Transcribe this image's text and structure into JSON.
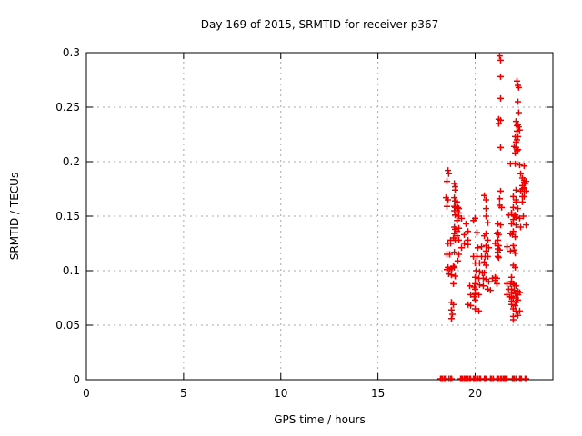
{
  "chart_data": {
    "type": "scatter",
    "title": "Day 169 of 2015, SRMTID for receiver p367",
    "xlabel": "GPS time / hours",
    "ylabel": "SRMTID / TECUs",
    "xlim": [
      0,
      24
    ],
    "ylim": [
      0,
      0.3
    ],
    "xticks": [
      {
        "v": 0,
        "label": "0"
      },
      {
        "v": 5,
        "label": "5"
      },
      {
        "v": 10,
        "label": "10"
      },
      {
        "v": 15,
        "label": "15"
      },
      {
        "v": 20,
        "label": "20"
      }
    ],
    "yticks": [
      {
        "v": 0,
        "label": "0"
      },
      {
        "v": 0.05,
        "label": "0.05"
      },
      {
        "v": 0.1,
        "label": "0.1"
      },
      {
        "v": 0.15,
        "label": "0.15"
      },
      {
        "v": 0.2,
        "label": "0.2"
      },
      {
        "v": 0.25,
        "label": "0.25"
      },
      {
        "v": 0.3,
        "label": "0.3"
      }
    ],
    "grid": true,
    "legend_position": "none",
    "colors": {
      "marker": "#ee0000",
      "grid": "#a8a8a8",
      "axis": "#000000"
    },
    "marker": {
      "shape": "plus",
      "size": 7,
      "stroke_width": 1.5
    },
    "series": [
      {
        "name": "SRMTID",
        "points": [
          [
            18.5,
            0.167
          ],
          [
            18.55,
            0.182
          ],
          [
            18.55,
            0.159
          ],
          [
            18.55,
            0.115
          ],
          [
            18.55,
            0.101
          ],
          [
            18.6,
            0.192
          ],
          [
            18.6,
            0.165
          ],
          [
            18.6,
            0.125
          ],
          [
            18.6,
            0.103
          ],
          [
            18.64,
            0.189
          ],
          [
            18.64,
            0.097
          ],
          [
            18.69,
            0.115
          ],
          [
            18.69,
            0.101
          ],
          [
            18.74,
            0.128
          ],
          [
            18.74,
            0.125
          ],
          [
            18.78,
            0.102
          ],
          [
            18.78,
            0.096
          ],
          [
            18.78,
            0.071
          ],
          [
            18.78,
            0.064
          ],
          [
            18.78,
            0.056
          ],
          [
            18.83,
            0.06
          ],
          [
            18.88,
            0.13
          ],
          [
            18.88,
            0.104
          ],
          [
            18.88,
            0.088
          ],
          [
            18.88,
            0.069
          ],
          [
            18.93,
            0.18
          ],
          [
            18.93,
            0.167
          ],
          [
            18.93,
            0.159
          ],
          [
            18.93,
            0.155
          ],
          [
            18.93,
            0.14
          ],
          [
            18.93,
            0.134
          ],
          [
            18.93,
            0.117
          ],
          [
            18.93,
            0.103
          ],
          [
            18.97,
            0.177
          ],
          [
            18.97,
            0.174
          ],
          [
            18.97,
            0.164
          ],
          [
            18.97,
            0.158
          ],
          [
            18.97,
            0.151
          ],
          [
            18.97,
            0.138
          ],
          [
            18.97,
            0.128
          ],
          [
            18.97,
            0.095
          ],
          [
            19.07,
            0.163
          ],
          [
            19.07,
            0.155
          ],
          [
            19.07,
            0.146
          ],
          [
            19.07,
            0.136
          ],
          [
            19.07,
            0.132
          ],
          [
            19.11,
            0.158
          ],
          [
            19.11,
            0.109
          ],
          [
            19.16,
            0.157
          ],
          [
            19.16,
            0.153
          ],
          [
            19.16,
            0.15
          ],
          [
            19.16,
            0.139
          ],
          [
            19.16,
            0.128
          ],
          [
            19.16,
            0.115
          ],
          [
            19.3,
            0.148
          ],
          [
            19.3,
            0.121
          ],
          [
            19.44,
            0.133
          ],
          [
            19.44,
            0.125
          ],
          [
            19.53,
            0.143
          ],
          [
            19.63,
            0.136
          ],
          [
            19.63,
            0.128
          ],
          [
            19.63,
            0.124
          ],
          [
            19.63,
            0.069
          ],
          [
            19.72,
            0.086
          ],
          [
            19.77,
            0.078
          ],
          [
            19.77,
            0.068
          ],
          [
            19.91,
            0.146
          ],
          [
            19.91,
            0.113
          ],
          [
            19.95,
            0.085
          ],
          [
            19.95,
            0.076
          ],
          [
            20.0,
            0.148
          ],
          [
            20.0,
            0.107
          ],
          [
            20.0,
            0.094
          ],
          [
            20.0,
            0.088
          ],
          [
            20.0,
            0.083
          ],
          [
            20.0,
            0.079
          ],
          [
            20.0,
            0.073
          ],
          [
            20.0,
            0.065
          ],
          [
            20.05,
            0.1
          ],
          [
            20.09,
            0.135
          ],
          [
            20.09,
            0.113
          ],
          [
            20.14,
            0.121
          ],
          [
            20.19,
            0.093
          ],
          [
            20.19,
            0.078
          ],
          [
            20.19,
            0.063
          ],
          [
            20.23,
            0.107
          ],
          [
            20.23,
            0.099
          ],
          [
            20.23,
            0.087
          ],
          [
            20.33,
            0.122
          ],
          [
            20.33,
            0.113
          ],
          [
            20.37,
            0.098
          ],
          [
            20.42,
            0.093
          ],
          [
            20.42,
            0.086
          ],
          [
            20.47,
            0.169
          ],
          [
            20.47,
            0.132
          ],
          [
            20.47,
            0.108
          ],
          [
            20.47,
            0.098
          ],
          [
            20.51,
            0.113
          ],
          [
            20.56,
            0.165
          ],
          [
            20.56,
            0.157
          ],
          [
            20.56,
            0.15
          ],
          [
            20.56,
            0.134
          ],
          [
            20.56,
            0.123
          ],
          [
            20.56,
            0.118
          ],
          [
            20.56,
            0.105
          ],
          [
            20.56,
            0.092
          ],
          [
            20.65,
            0.144
          ],
          [
            20.65,
            0.128
          ],
          [
            20.65,
            0.113
          ],
          [
            20.65,
            0.083
          ],
          [
            20.7,
            0.121
          ],
          [
            20.7,
            0.09
          ],
          [
            20.79,
            0.082
          ],
          [
            20.89,
            0.093
          ],
          [
            21.03,
            0.125
          ],
          [
            21.03,
            0.094
          ],
          [
            21.03,
            0.091
          ],
          [
            21.12,
            0.134
          ],
          [
            21.12,
            0.093
          ],
          [
            21.12,
            0.088
          ],
          [
            21.17,
            0.143
          ],
          [
            21.17,
            0.135
          ],
          [
            21.17,
            0.128
          ],
          [
            21.17,
            0.12
          ],
          [
            21.17,
            0.117
          ],
          [
            21.17,
            0.113
          ],
          [
            21.21,
            0.239
          ],
          [
            21.21,
            0.235
          ],
          [
            21.21,
            0.133
          ],
          [
            21.21,
            0.123
          ],
          [
            21.21,
            0.112
          ],
          [
            21.26,
            0.297
          ],
          [
            21.26,
            0.166
          ],
          [
            21.26,
            0.16
          ],
          [
            21.26,
            0.119
          ],
          [
            21.31,
            0.293
          ],
          [
            21.31,
            0.278
          ],
          [
            21.31,
            0.258
          ],
          [
            21.31,
            0.238
          ],
          [
            21.31,
            0.213
          ],
          [
            21.31,
            0.173
          ],
          [
            21.31,
            0.142
          ],
          [
            21.36,
            0.158
          ],
          [
            21.64,
            0.122
          ],
          [
            21.64,
            0.088
          ],
          [
            21.64,
            0.078
          ],
          [
            21.73,
            0.151
          ],
          [
            21.73,
            0.083
          ],
          [
            21.78,
            0.076
          ],
          [
            21.82,
            0.198
          ],
          [
            21.82,
            0.134
          ],
          [
            21.82,
            0.118
          ],
          [
            21.82,
            0.088
          ],
          [
            21.87,
            0.153
          ],
          [
            21.87,
            0.143
          ],
          [
            21.87,
            0.094
          ],
          [
            21.87,
            0.09
          ],
          [
            21.87,
            0.083
          ],
          [
            21.87,
            0.08
          ],
          [
            21.87,
            0.076
          ],
          [
            21.87,
            0.072
          ],
          [
            21.87,
            0.069
          ],
          [
            21.92,
            0.133
          ],
          [
            21.96,
            0.168
          ],
          [
            21.96,
            0.158
          ],
          [
            21.96,
            0.147
          ],
          [
            21.96,
            0.136
          ],
          [
            21.96,
            0.123
          ],
          [
            21.96,
            0.105
          ],
          [
            21.96,
            0.088
          ],
          [
            21.96,
            0.075
          ],
          [
            21.96,
            0.065
          ],
          [
            21.96,
            0.058
          ],
          [
            21.96,
            0.055
          ],
          [
            22.01,
            0.214
          ],
          [
            22.01,
            0.15
          ],
          [
            22.01,
            0.119
          ],
          [
            22.01,
            0.087
          ],
          [
            22.01,
            0.082
          ],
          [
            22.06,
            0.223
          ],
          [
            22.06,
            0.208
          ],
          [
            22.06,
            0.198
          ],
          [
            22.06,
            0.151
          ],
          [
            22.06,
            0.131
          ],
          [
            22.06,
            0.116
          ],
          [
            22.06,
            0.103
          ],
          [
            22.06,
            0.079
          ],
          [
            22.06,
            0.068
          ],
          [
            22.1,
            0.237
          ],
          [
            22.1,
            0.218
          ],
          [
            22.1,
            0.213
          ],
          [
            22.1,
            0.174
          ],
          [
            22.1,
            0.165
          ],
          [
            22.1,
            0.163
          ],
          [
            22.1,
            0.149
          ],
          [
            22.1,
            0.142
          ],
          [
            22.1,
            0.086
          ],
          [
            22.1,
            0.075
          ],
          [
            22.1,
            0.071
          ],
          [
            22.1,
            0.063
          ],
          [
            22.15,
            0.274
          ],
          [
            22.15,
            0.233
          ],
          [
            22.15,
            0.228
          ],
          [
            22.15,
            0.22
          ],
          [
            22.15,
            0.21
          ],
          [
            22.2,
            0.27
          ],
          [
            22.2,
            0.255
          ],
          [
            22.2,
            0.234
          ],
          [
            22.2,
            0.223
          ],
          [
            22.2,
            0.211
          ],
          [
            22.2,
            0.157
          ],
          [
            22.2,
            0.081
          ],
          [
            22.2,
            0.078
          ],
          [
            22.2,
            0.073
          ],
          [
            22.2,
            0.059
          ],
          [
            22.24,
            0.268
          ],
          [
            22.24,
            0.245
          ],
          [
            22.24,
            0.232
          ],
          [
            22.29,
            0.229
          ],
          [
            22.29,
            0.197
          ],
          [
            22.29,
            0.148
          ],
          [
            22.29,
            0.08
          ],
          [
            22.29,
            0.063
          ],
          [
            22.34,
            0.189
          ],
          [
            22.34,
            0.173
          ],
          [
            22.34,
            0.14
          ],
          [
            22.43,
            0.185
          ],
          [
            22.43,
            0.178
          ],
          [
            22.43,
            0.175
          ],
          [
            22.43,
            0.168
          ],
          [
            22.43,
            0.163
          ],
          [
            22.48,
            0.15
          ],
          [
            22.52,
            0.196
          ],
          [
            22.52,
            0.183
          ],
          [
            22.52,
            0.181
          ],
          [
            22.52,
            0.176
          ],
          [
            22.52,
            0.173
          ],
          [
            22.52,
            0.168
          ],
          [
            22.57,
            0.18
          ],
          [
            22.62,
            0.182
          ],
          [
            22.62,
            0.173
          ],
          [
            22.62,
            0.142
          ]
        ],
        "zero_line_hours": [
          18.22,
          18.27,
          18.32,
          18.41,
          18.46,
          18.65,
          18.74,
          18.79,
          19.25,
          19.3,
          19.35,
          19.44,
          19.49,
          19.54,
          19.63,
          19.72,
          19.77,
          19.91,
          19.95,
          20.0,
          20.09,
          20.14,
          20.23,
          20.28,
          20.47,
          20.51,
          20.56,
          20.79,
          20.84,
          20.93,
          21.12,
          21.17,
          21.21,
          21.31,
          21.36,
          21.45,
          21.5,
          21.54,
          21.59,
          21.64,
          21.92,
          21.96,
          22.01,
          22.1,
          22.29,
          22.34,
          22.38,
          22.57,
          22.62
        ]
      }
    ]
  }
}
